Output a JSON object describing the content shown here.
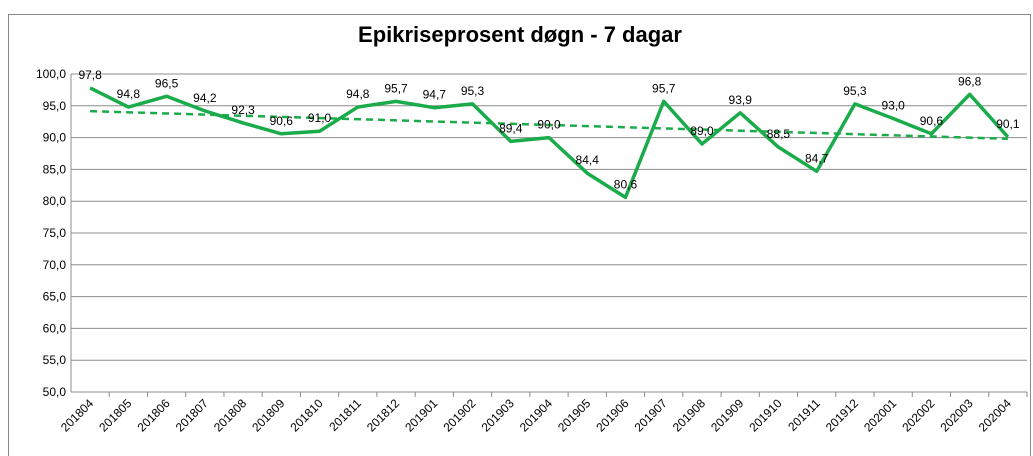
{
  "chart_data": {
    "type": "line",
    "title": "Epikriseprosent døgn - 7 dagar",
    "categories": [
      "201804",
      "201805",
      "201806",
      "201807",
      "201808",
      "201809",
      "201810",
      "201811",
      "201812",
      "201901",
      "201902",
      "201903",
      "201904",
      "201905",
      "201906",
      "201907",
      "201908",
      "201909",
      "201910",
      "201911",
      "201912",
      "202001",
      "202002",
      "202003",
      "202004"
    ],
    "values": [
      97.8,
      94.8,
      96.5,
      94.2,
      92.3,
      90.6,
      91.0,
      94.8,
      95.7,
      94.7,
      95.3,
      89.4,
      90.0,
      84.4,
      80.6,
      95.7,
      89.0,
      93.9,
      88.5,
      84.7,
      95.3,
      93.0,
      90.6,
      96.8,
      90.1
    ],
    "value_labels": [
      "97,8",
      "94,8",
      "96,5",
      "94,2",
      "92,3",
      "90,6",
      "91,0",
      "94,8",
      "95,7",
      "94,7",
      "95,3",
      "89,4",
      "90,0",
      "84,4",
      "80,6",
      "95,7",
      "89,0",
      "93,9",
      "88,5",
      "84,7",
      "95,3",
      "93,0",
      "90,6",
      "96,8",
      "90,1"
    ],
    "color": "#1aab4b",
    "trendline": true,
    "ylim": [
      50,
      100
    ],
    "yticks": [
      {
        "value": 50,
        "label": "50,0"
      },
      {
        "value": 55,
        "label": "55,0"
      },
      {
        "value": 60,
        "label": "60,0"
      },
      {
        "value": 65,
        "label": "65,0"
      },
      {
        "value": 70,
        "label": "70,0"
      },
      {
        "value": 75,
        "label": "75,0"
      },
      {
        "value": 80,
        "label": "80,0"
      },
      {
        "value": 85,
        "label": "85,0"
      },
      {
        "value": 90,
        "label": "90,0"
      },
      {
        "value": 95,
        "label": "95,0"
      },
      {
        "value": 100,
        "label": "100,0"
      }
    ],
    "grid": true
  }
}
